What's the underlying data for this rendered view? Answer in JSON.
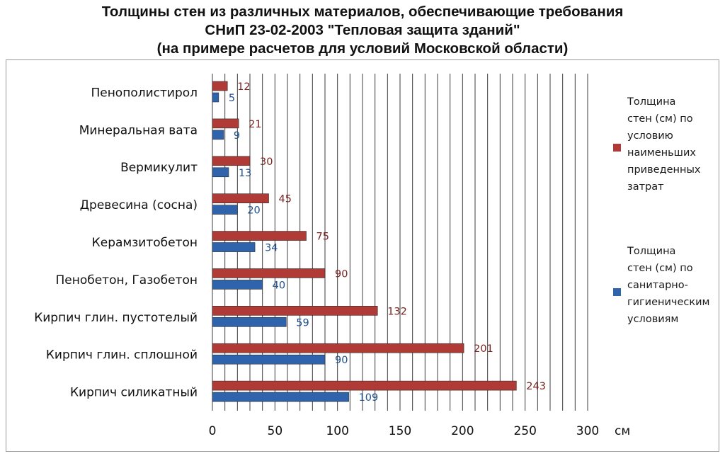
{
  "chart_data": {
    "type": "bar",
    "orientation": "horizontal",
    "title": [
      "Толщины стен из различных материалов, обеспечивающие требования",
      "СНиП 23-02-2003 \"Тепловая защита зданий\"",
      "(на примере расчетов для условий Московской области)"
    ],
    "xlabel": "см",
    "ylabel": "",
    "xlim": [
      0,
      300
    ],
    "xticks": [
      0,
      50,
      100,
      150,
      200,
      250,
      300
    ],
    "minor_grid_step": 10,
    "grid": true,
    "legend_position": "right",
    "categories": [
      "Пенополистирол",
      "Минеральная вата",
      "Вермикулит",
      "Древесина (сосна)",
      "Керамзитобетон",
      "Пенобетон, Газобетон",
      "Кирпич глин. пустотелый",
      "Кирпич глин. сплошной",
      "Кирпич силикатный"
    ],
    "series": [
      {
        "name": [
          "Толщина",
          "стен (см) по",
          "условию",
          "наименьших",
          "приведенных",
          "затрат"
        ],
        "color": "#b03a36",
        "label_color": "#7a2320",
        "values": [
          12,
          21,
          30,
          45,
          75,
          90,
          132,
          201,
          243
        ]
      },
      {
        "name": [
          "Толщина",
          "стен (см) по",
          "санитарно-",
          "гигиеническим",
          "условиям"
        ],
        "color": "#2f64ad",
        "label_color": "#1f4f8c",
        "values": [
          5,
          9,
          13,
          20,
          34,
          40,
          59,
          90,
          109
        ]
      }
    ]
  }
}
